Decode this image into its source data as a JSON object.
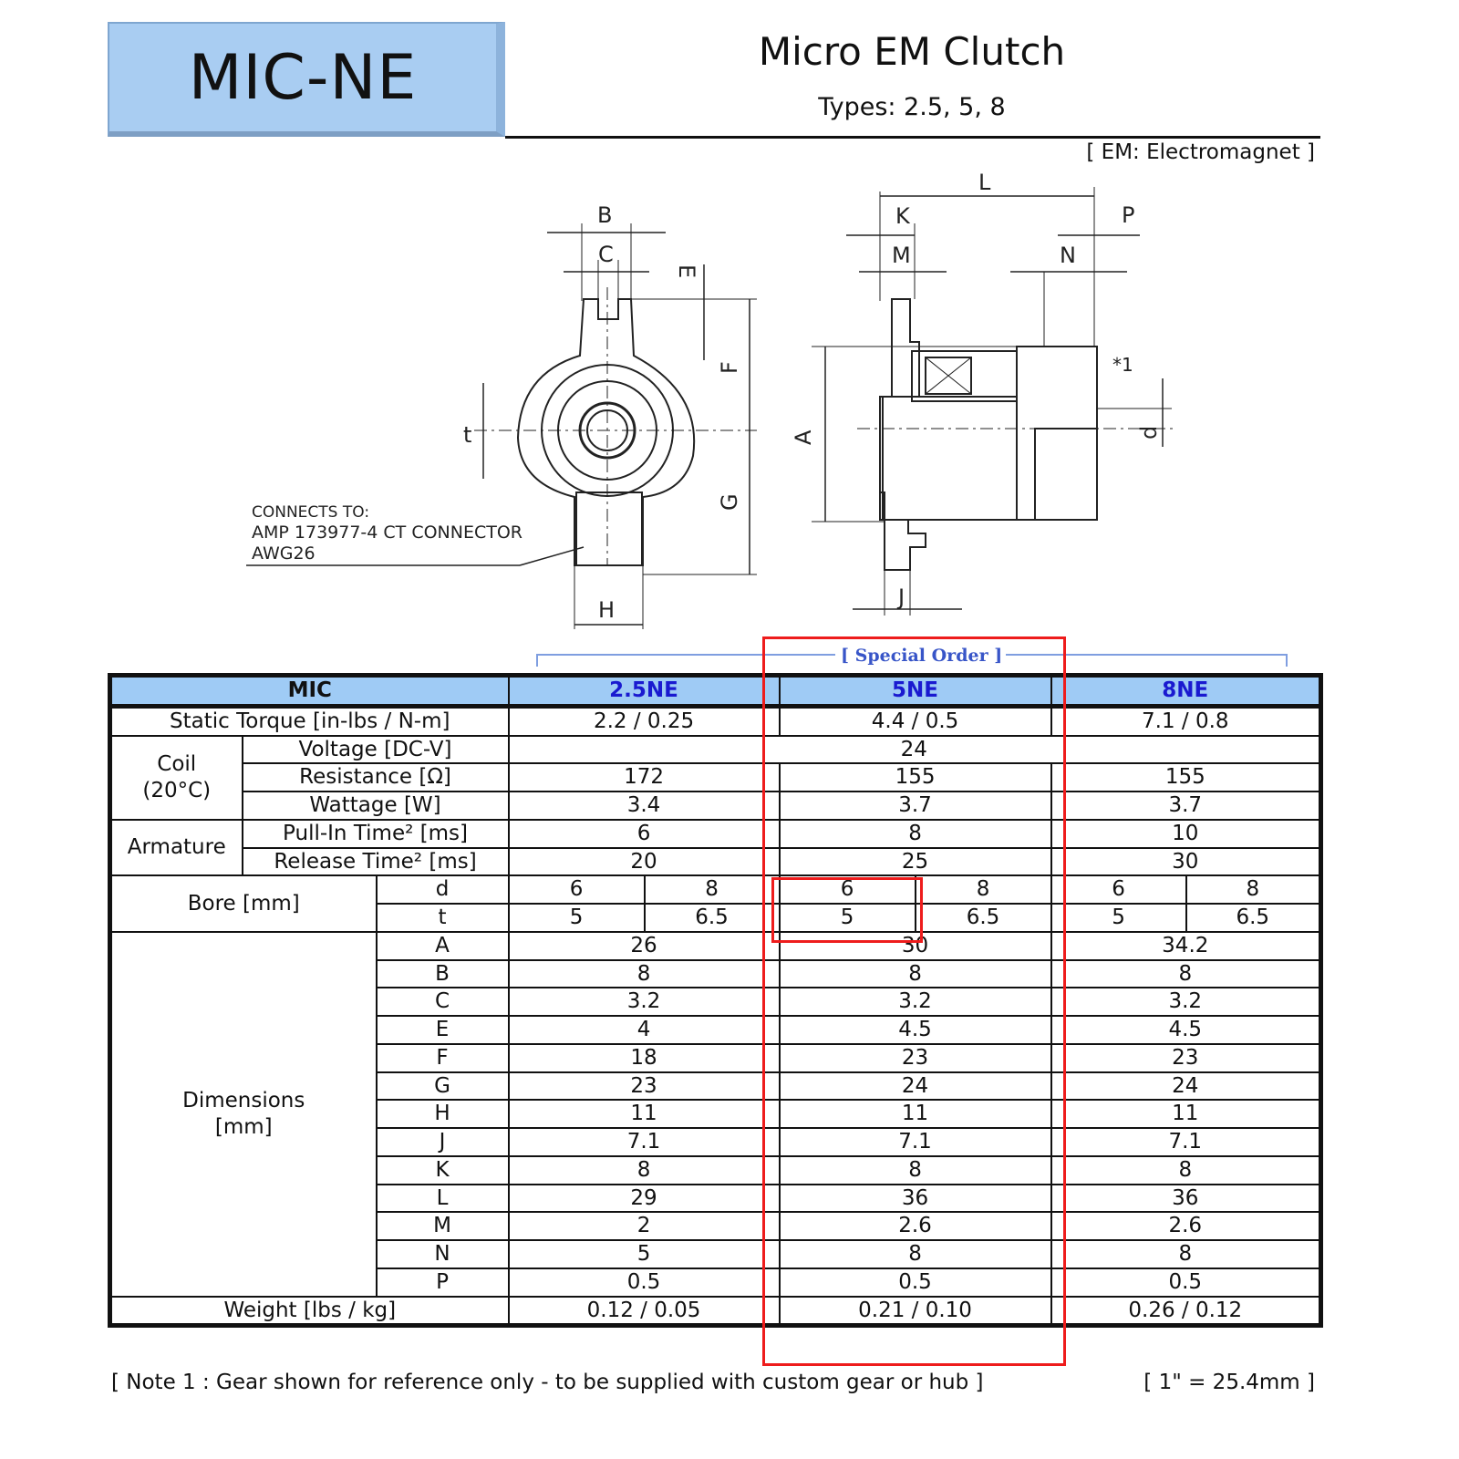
{
  "header": {
    "product_code": "MIC-NE",
    "title": "Micro EM Clutch",
    "types": "Types: 2.5, 5, 8",
    "em_note": "[ EM: Electromagnet ]"
  },
  "drawing": {
    "connector_note": [
      "CONNECTS TO:",
      "AMP 173977-4 CT CONNECTOR",
      "AWG26"
    ],
    "front_labels": {
      "B": "B",
      "C": "C",
      "E": "E",
      "F": "F",
      "G": "G",
      "H": "H",
      "t": "t"
    },
    "side_labels": {
      "L": "L",
      "K": "K",
      "P": "P",
      "M": "M",
      "N": "N",
      "A": "A",
      "d": "d",
      "J": "J",
      "note1": "*1"
    }
  },
  "special_order_label": "[ Special Order ]",
  "table": {
    "header": {
      "label": "MIC",
      "models": [
        "2.5NE",
        "5NE",
        "8NE"
      ]
    },
    "static_torque": {
      "label": "Static Torque [in-lbs / N-m]",
      "values": [
        "2.2 / 0.25",
        "4.4 / 0.5",
        "7.1 / 0.8"
      ]
    },
    "coil": {
      "group": "Coil",
      "group_sub": "(20°C)",
      "voltage": {
        "label": "Voltage [DC-V]",
        "value": "24"
      },
      "resistance": {
        "label": "Resistance [Ω]",
        "values": [
          "172",
          "155",
          "155"
        ]
      },
      "wattage": {
        "label": "Wattage [W]",
        "values": [
          "3.4",
          "3.7",
          "3.7"
        ]
      }
    },
    "armature": {
      "group": "Armature",
      "pull_in": {
        "label": "Pull-In Time² [ms]",
        "values": [
          "6",
          "8",
          "10"
        ]
      },
      "release": {
        "label": "Release Time² [ms]",
        "values": [
          "20",
          "25",
          "30"
        ]
      }
    },
    "bore": {
      "group": "Bore [mm]",
      "d": {
        "label": "d",
        "values": [
          "6",
          "8",
          "6",
          "8",
          "6",
          "8"
        ]
      },
      "t": {
        "label": "t",
        "values": [
          "5",
          "6.5",
          "5",
          "6.5",
          "5",
          "6.5"
        ]
      }
    },
    "dimensions": {
      "group": "Dimensions",
      "group_sub": "[mm]",
      "rows": [
        {
          "label": "A",
          "values": [
            "26",
            "30",
            "34.2"
          ]
        },
        {
          "label": "B",
          "values": [
            "8",
            "8",
            "8"
          ]
        },
        {
          "label": "C",
          "values": [
            "3.2",
            "3.2",
            "3.2"
          ]
        },
        {
          "label": "E",
          "values": [
            "4",
            "4.5",
            "4.5"
          ]
        },
        {
          "label": "F",
          "values": [
            "18",
            "23",
            "23"
          ]
        },
        {
          "label": "G",
          "values": [
            "23",
            "24",
            "24"
          ]
        },
        {
          "label": "H",
          "values": [
            "11",
            "11",
            "11"
          ]
        },
        {
          "label": "J",
          "values": [
            "7.1",
            "7.1",
            "7.1"
          ]
        },
        {
          "label": "K",
          "values": [
            "8",
            "8",
            "8"
          ]
        },
        {
          "label": "L",
          "values": [
            "29",
            "36",
            "36"
          ]
        },
        {
          "label": "M",
          "values": [
            "2",
            "2.6",
            "2.6"
          ]
        },
        {
          "label": "N",
          "values": [
            "5",
            "8",
            "8"
          ]
        },
        {
          "label": "P",
          "values": [
            "0.5",
            "0.5",
            "0.5"
          ]
        }
      ]
    },
    "weight": {
      "label": "Weight [lbs / kg]",
      "values": [
        "0.12 / 0.05",
        "0.21 / 0.10",
        "0.26 / 0.12"
      ]
    }
  },
  "footer": {
    "note": "[ Note 1 : Gear shown for reference only - to be supplied with custom gear or hub ]",
    "conversion": "[ 1\" = 25.4mm ]"
  },
  "colors": {
    "header_fill": "#9fcbf5",
    "model_text": "#1a1ad0",
    "highlight": "#ee1c1c",
    "special_order": "#3855c8"
  }
}
